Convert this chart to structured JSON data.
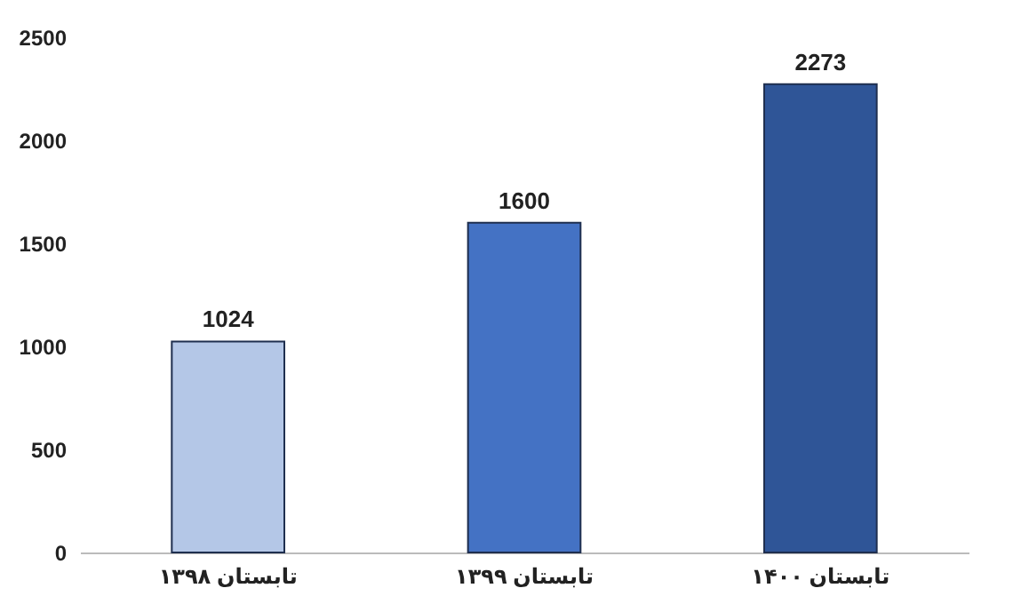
{
  "chart_data": {
    "type": "bar",
    "categories": [
      "تابستان ۱۳۹۸",
      "تابستان ۱۳۹۹",
      "تابستان ۱۴۰۰"
    ],
    "values": [
      1024,
      1600,
      2273
    ],
    "colors": [
      "#b4c7e7",
      "#4472c4",
      "#2f5597"
    ],
    "ylim": [
      0,
      2500
    ],
    "yticks": [
      0,
      500,
      1000,
      1500,
      2000,
      2500
    ],
    "data_labels": true,
    "grid": false,
    "legend": false
  }
}
